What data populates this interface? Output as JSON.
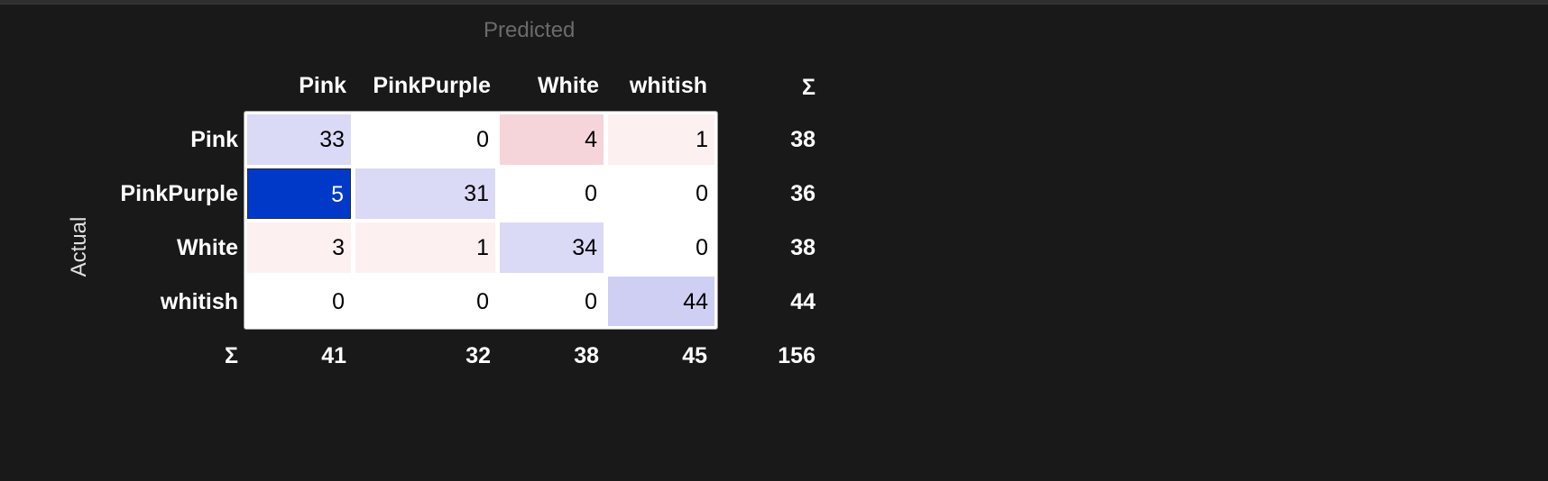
{
  "title": "Predicted",
  "row_axis_label": "Actual",
  "sum_symbol": "Σ",
  "columns": [
    "Pink",
    "PinkPurple",
    "White",
    "whitish"
  ],
  "rows": [
    "Pink",
    "PinkPurple",
    "White",
    "whitish"
  ],
  "cells": [
    [
      33,
      0,
      4,
      1
    ],
    [
      5,
      31,
      0,
      0
    ],
    [
      3,
      1,
      34,
      0
    ],
    [
      0,
      0,
      0,
      44
    ]
  ],
  "row_totals": [
    38,
    36,
    38,
    44
  ],
  "col_totals": [
    41,
    32,
    38,
    45
  ],
  "grand_total": 156,
  "selected_cell": {
    "row": 1,
    "col": 0
  },
  "colors": {
    "background": "#191919",
    "diagonal": "#dadaf6",
    "diagonal_strong": "#cfcff3",
    "off_diagonal_strong": "#f6d5da",
    "off_diagonal_light": "#fdf0f1",
    "selected": "#0039c8",
    "selected_text": "#ffffff"
  }
}
